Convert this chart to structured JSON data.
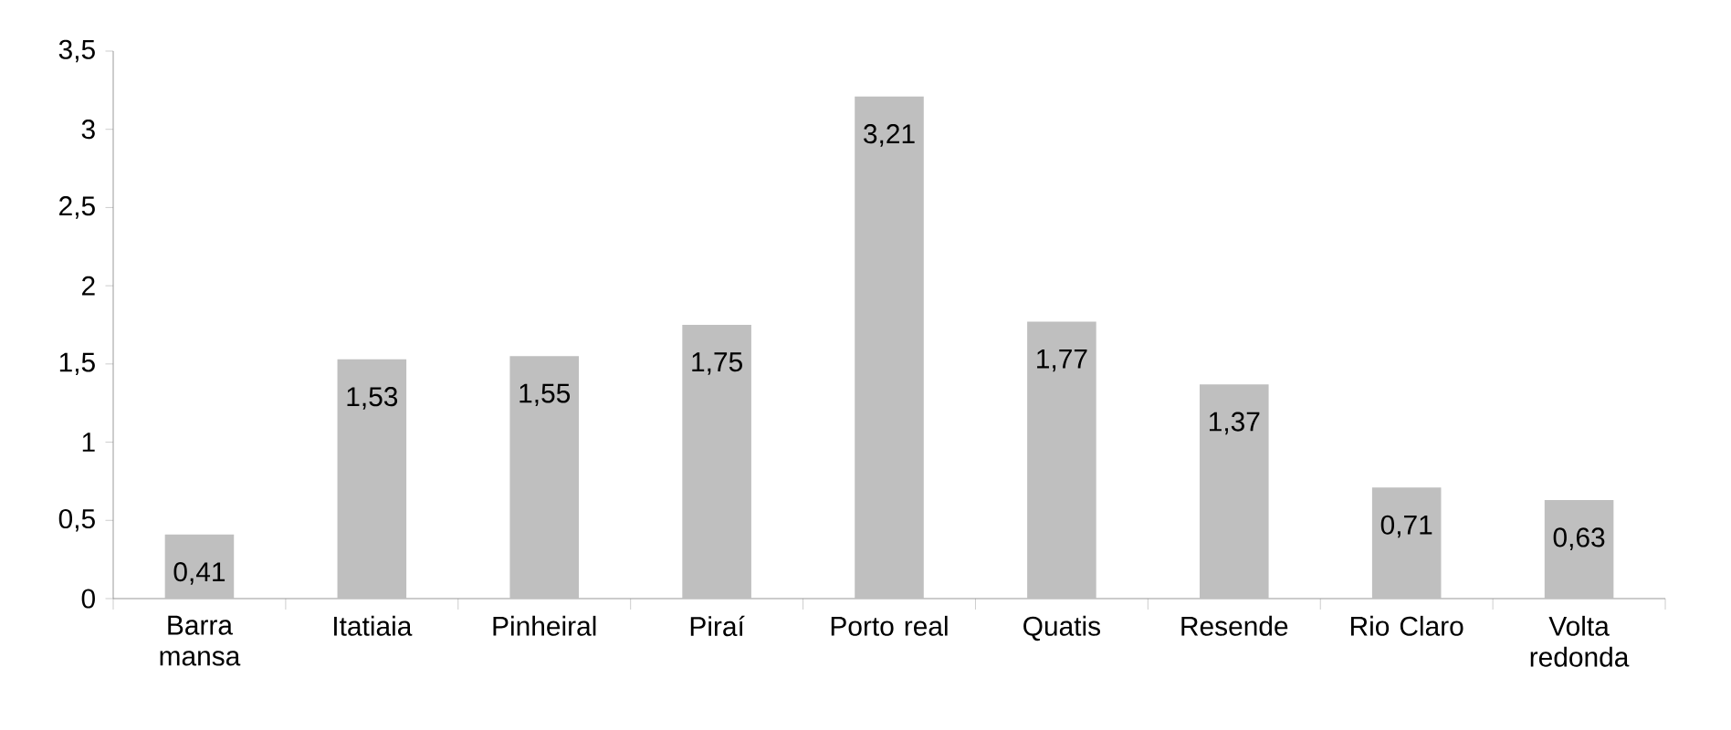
{
  "chart_data": {
    "type": "bar",
    "categories": [
      "Barra mansa",
      "Itatiaia",
      "Pinheiral",
      "Piraí",
      "Porto real",
      "Quatis",
      "Resende",
      "Rio Claro",
      "Volta redonda"
    ],
    "values": [
      0.41,
      1.53,
      1.55,
      1.75,
      3.21,
      1.77,
      1.37,
      0.71,
      0.63
    ],
    "value_labels": [
      "0,41",
      "1,53",
      "1,55",
      "1,75",
      "3,21",
      "1,77",
      "1,37",
      "0,71",
      "0,63"
    ],
    "color": "#bfbfbf",
    "ylim": [
      0,
      3.5
    ],
    "yticks": [
      0,
      {
        "value": 0.5,
        "label": "0,5"
      },
      1,
      {
        "value": 1.5,
        "label": "1,5"
      },
      2,
      {
        "value": 2.5,
        "label": "2,5"
      },
      3,
      {
        "value": 3.5,
        "label": "3,5"
      }
    ]
  }
}
